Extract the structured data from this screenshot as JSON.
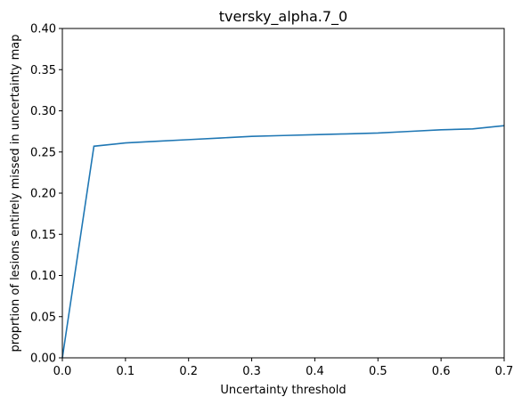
{
  "chart_data": {
    "type": "line",
    "title": "tversky_alpha.7_0",
    "xlabel": "Uncertainty threshold",
    "ylabel": "proprtion of lesions entirely missed in uncertainty map",
    "xlim": [
      0.0,
      0.7
    ],
    "ylim": [
      0.0,
      0.4
    ],
    "xticks": [
      0.0,
      0.1,
      0.2,
      0.3,
      0.4,
      0.5,
      0.6,
      0.7
    ],
    "xtick_labels": [
      "0.0",
      "0.1",
      "0.2",
      "0.3",
      "0.4",
      "0.5",
      "0.6",
      "0.7"
    ],
    "yticks": [
      0.0,
      0.05,
      0.1,
      0.15,
      0.2,
      0.25,
      0.3,
      0.35,
      0.4
    ],
    "ytick_labels": [
      "0.00",
      "0.05",
      "0.10",
      "0.15",
      "0.20",
      "0.25",
      "0.30",
      "0.35",
      "0.40"
    ],
    "grid": false,
    "line_color": "#1f77b4",
    "series": [
      {
        "x": [
          0.0,
          0.05,
          0.1,
          0.15,
          0.2,
          0.25,
          0.3,
          0.35,
          0.4,
          0.45,
          0.5,
          0.55,
          0.6,
          0.65,
          0.7
        ],
        "values": [
          0.0,
          0.257,
          0.261,
          0.263,
          0.265,
          0.267,
          0.269,
          0.27,
          0.271,
          0.272,
          0.273,
          0.275,
          0.277,
          0.278,
          0.282
        ]
      }
    ]
  }
}
